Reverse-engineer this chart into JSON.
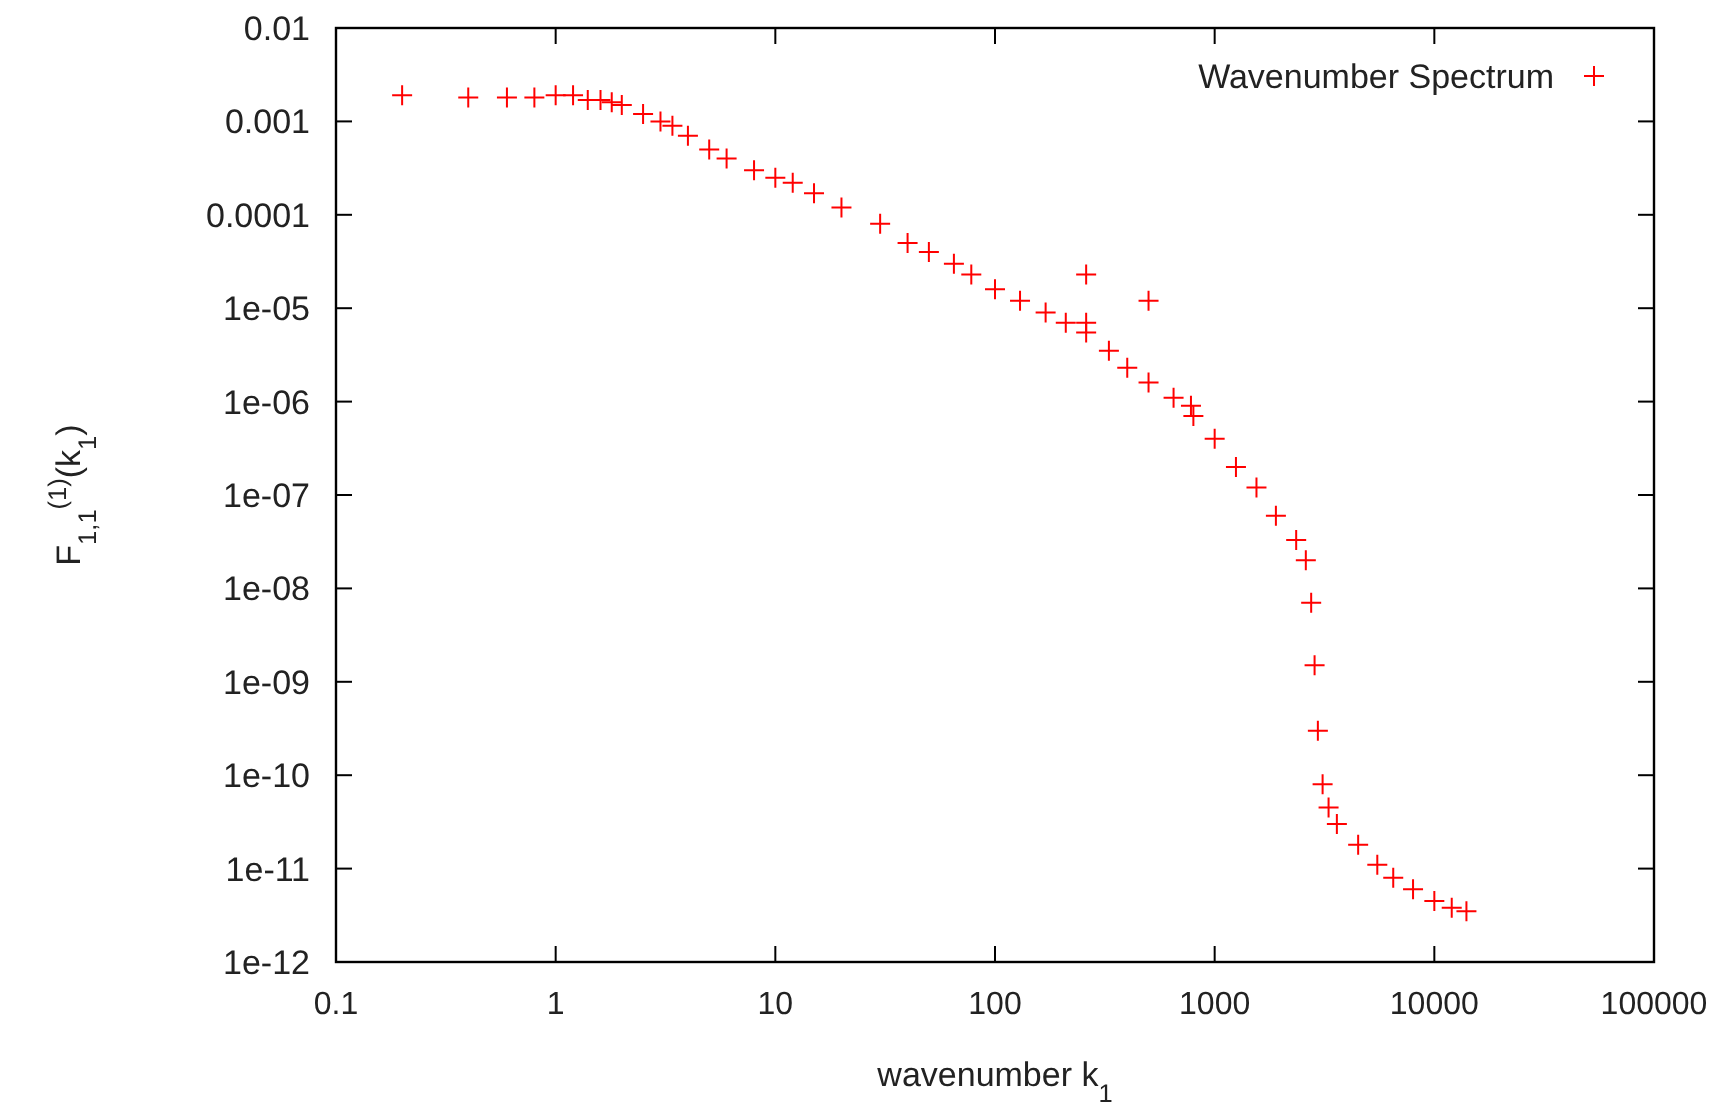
{
  "chart_data": {
    "type": "scatter",
    "xlabel": "wavenumber k$_{1}$",
    "ylabel": "F$_{1,1}$$^{(1)}$(k$_{1}$)",
    "log": "xy",
    "grid": false,
    "legend": "top right",
    "marker": "cross",
    "xlim": [
      0.1,
      100000
    ],
    "xticks": [
      0.1,
      1,
      10,
      100,
      1000,
      10000,
      100000
    ],
    "ylim": [
      1e-12,
      0.01
    ],
    "yticks": [
      0.01,
      0.001,
      0.0001,
      {
        "value": 1e-05,
        "label": "1e-05"
      },
      {
        "value": 1e-06,
        "label": "1e-06"
      },
      {
        "value": 1e-07,
        "label": "1e-07"
      },
      {
        "value": 1e-08,
        "label": "1e-08"
      },
      {
        "value": 1e-09,
        "label": "1e-09"
      },
      {
        "value": 1e-10,
        "label": "1e-10"
      },
      {
        "value": 1e-11,
        "label": "1e-11"
      },
      {
        "value": 1e-12,
        "label": "1e-12"
      }
    ],
    "series": [
      {
        "name": "Wavenumber Spectrum",
        "color": "#ff0000",
        "x": [
          0.2,
          0.4,
          0.6,
          0.8,
          1.0,
          1.2,
          1.4,
          1.6,
          1.8,
          2,
          2.5,
          3,
          3.4,
          4,
          5,
          6,
          8,
          10,
          12,
          15,
          20,
          30,
          40,
          50,
          65,
          78,
          100,
          130,
          170,
          210,
          260,
          330,
          400,
          500,
          650,
          800,
          1000,
          1250,
          1550,
          1900,
          2350,
          2600,
          2750,
          2850,
          2950,
          3100,
          3300,
          3600,
          4500,
          5500,
          6500,
          8000,
          10000,
          12000,
          14000,
          260,
          260,
          500,
          780
        ],
        "values": [
          0.0019,
          0.0018,
          0.0018,
          0.0018,
          0.0019,
          0.0019,
          0.0017,
          0.0017,
          0.0016,
          0.0015,
          0.0012,
          0.001,
          0.0009,
          0.0007,
          0.0005,
          0.0004,
          0.0003,
          0.00025,
          0.00022,
          0.00017,
          0.00012,
          8e-05,
          5e-05,
          4e-05,
          3e-05,
          2.3e-05,
          1.6e-05,
          1.2e-05,
          9e-06,
          7e-06,
          5.5e-06,
          3.5e-06,
          2.3e-06,
          1.6e-06,
          1.1e-06,
          7e-07,
          4e-07,
          2e-07,
          1.2e-07,
          6e-08,
          3.3e-08,
          2e-08,
          7e-09,
          1.5e-09,
          3e-10,
          8e-11,
          4.5e-11,
          3e-11,
          1.8e-11,
          1.1e-11,
          8e-12,
          6e-12,
          4.5e-12,
          3.8e-12,
          3.5e-12,
          2.3e-05,
          7e-06,
          1.2e-05,
          9e-07
        ]
      }
    ]
  }
}
